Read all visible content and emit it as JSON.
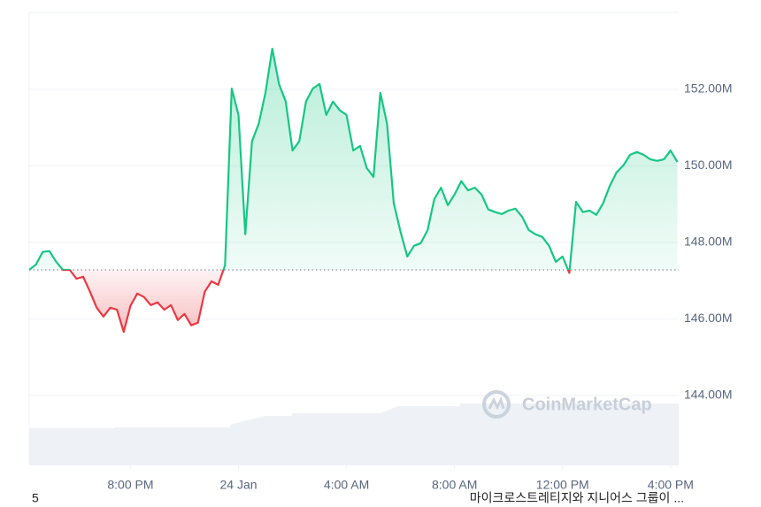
{
  "chart_data": {
    "type": "line",
    "x": [
      16.25,
      16.5,
      16.75,
      17.0,
      17.25,
      17.5,
      17.75,
      18.0,
      18.25,
      18.5,
      18.75,
      19.0,
      19.25,
      19.5,
      19.75,
      20.0,
      20.25,
      20.5,
      20.75,
      21.0,
      21.25,
      21.5,
      21.75,
      22.0,
      22.25,
      22.5,
      22.75,
      23.0,
      23.25,
      23.5,
      23.75,
      24.0,
      24.25,
      24.5,
      24.75,
      25.0,
      25.25,
      25.5,
      25.75,
      26.0,
      26.25,
      26.5,
      26.75,
      27.0,
      27.25,
      27.5,
      27.75,
      28.0,
      28.25,
      28.5,
      28.75,
      29.0,
      29.25,
      29.5,
      29.75,
      30.0,
      30.25,
      30.5,
      30.75,
      31.0,
      31.25,
      31.5,
      31.75,
      32.0,
      32.25,
      32.5,
      32.75,
      33.0,
      33.25,
      33.5,
      33.75,
      34.0,
      34.25,
      34.5,
      34.75,
      35.0,
      35.25,
      35.5,
      35.75,
      36.0,
      36.25,
      36.5,
      36.75,
      37.0,
      37.25,
      37.5,
      37.75,
      38.0,
      38.25,
      38.5,
      38.75,
      39.0,
      39.25,
      39.5,
      39.75,
      40.0,
      40.25
    ],
    "values": [
      147.28,
      147.42,
      147.75,
      147.77,
      147.49,
      147.28,
      147.28,
      147.05,
      147.1,
      146.71,
      146.29,
      146.06,
      146.29,
      146.24,
      145.66,
      146.34,
      146.66,
      146.57,
      146.36,
      146.43,
      146.24,
      146.36,
      145.97,
      146.13,
      145.83,
      145.9,
      146.71,
      146.98,
      146.89,
      147.4,
      152.02,
      151.33,
      148.21,
      150.64,
      151.1,
      151.91,
      153.06,
      152.14,
      151.68,
      150.4,
      150.64,
      151.68,
      152.02,
      152.14,
      151.33,
      151.68,
      151.45,
      151.33,
      150.4,
      150.52,
      149.94,
      149.71,
      151.91,
      151.1,
      149.02,
      148.28,
      147.63,
      147.91,
      147.98,
      148.32,
      149.13,
      149.43,
      148.97,
      149.25,
      149.6,
      149.36,
      149.43,
      149.25,
      148.86,
      148.79,
      148.74,
      148.83,
      148.88,
      148.67,
      148.32,
      148.21,
      148.14,
      147.91,
      147.49,
      147.63,
      147.2,
      149.06,
      148.79,
      148.83,
      148.72,
      149.02,
      149.48,
      149.83,
      150.01,
      150.29,
      150.36,
      150.29,
      150.17,
      150.13,
      150.17,
      150.4,
      150.1
    ],
    "baseline": 147.28,
    "colors": {
      "up": "#16c784",
      "down": "#ea3943"
    },
    "xlim": [
      16.25,
      40.3
    ],
    "xticks": [
      {
        "value": 20,
        "label": "8:00 PM"
      },
      {
        "value": 24,
        "label": "24 Jan"
      },
      {
        "value": 28,
        "label": "4:00 AM"
      },
      {
        "value": 32,
        "label": "8:00 AM"
      },
      {
        "value": 36,
        "label": "12:00 PM"
      },
      {
        "value": 40,
        "label": "4:00 PM"
      }
    ],
    "ylim": [
      142.17,
      154.01
    ],
    "yticks": [
      {
        "value": 144,
        "label": "144.00M"
      },
      {
        "value": 146,
        "label": "146.00M"
      },
      {
        "value": 148,
        "label": "148.00M"
      },
      {
        "value": 150,
        "label": "150.00M"
      },
      {
        "value": 152,
        "label": "152.00M"
      }
    ],
    "grid": true,
    "watermark": "CoinMarketCap"
  },
  "footer": {
    "left": "5",
    "right": "마이크로스트레티지와 지니어스 그룹이 ..."
  }
}
